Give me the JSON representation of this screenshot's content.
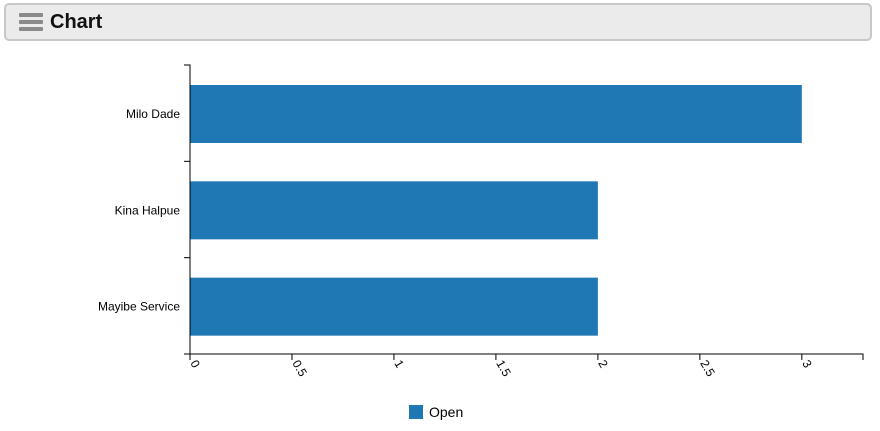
{
  "header": {
    "title": "Chart",
    "menu_icon": "hamburger-menu-icon"
  },
  "chart_data": {
    "type": "bar",
    "orientation": "horizontal",
    "categories": [
      "Milo Dade",
      "Kina Halpue",
      "Mayibe Service"
    ],
    "series": [
      {
        "name": "Open",
        "values": [
          3,
          2,
          2
        ],
        "color": "#1f77b4"
      }
    ],
    "x_ticks": [
      "0",
      "0.5",
      "1",
      "1.5",
      "2",
      "2.5",
      "3"
    ],
    "xlim": [
      0,
      3.3
    ],
    "grid": false,
    "legend_position": "bottom-center"
  }
}
